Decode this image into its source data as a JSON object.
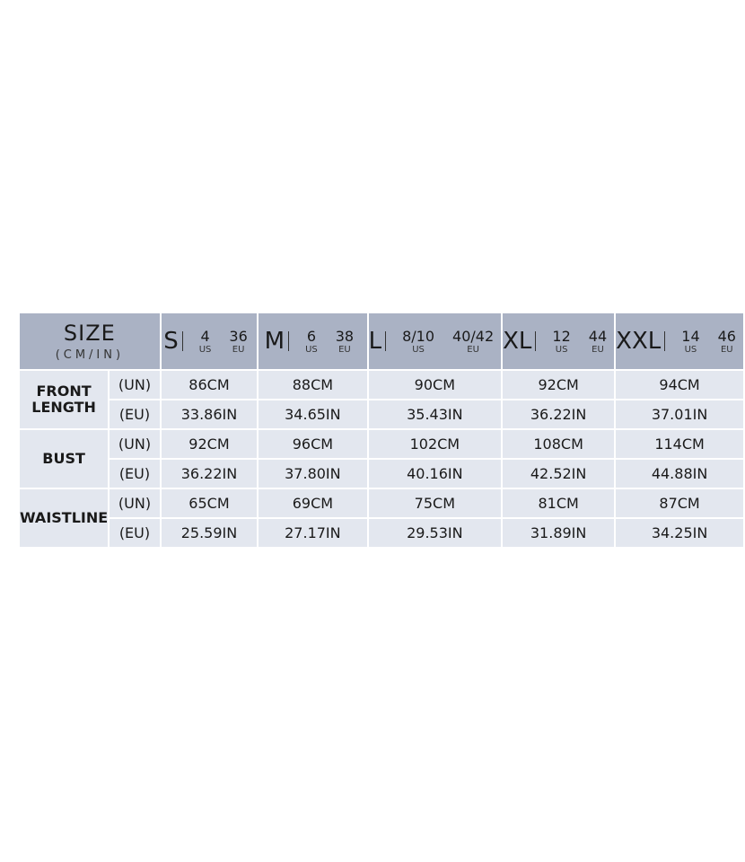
{
  "header": {
    "title": "SIZE",
    "subtitle": "(CM/IN)",
    "sizes": [
      {
        "label": "S",
        "us": "4",
        "eu": "36",
        "us_label": "US",
        "eu_label": "EU"
      },
      {
        "label": "M",
        "us": "6",
        "eu": "38",
        "us_label": "US",
        "eu_label": "EU"
      },
      {
        "label": "L",
        "us": "8/10",
        "eu": "40/42",
        "us_label": "US",
        "eu_label": "EU"
      },
      {
        "label": "XL",
        "us": "12",
        "eu": "44",
        "us_label": "US",
        "eu_label": "EU"
      },
      {
        "label": "XXL",
        "us": "14",
        "eu": "46",
        "us_label": "US",
        "eu_label": "EU"
      }
    ]
  },
  "rows": [
    {
      "measure": "FRONT\nLENGTH",
      "un_label": "(UN)",
      "eu_label": "(EU)",
      "cm": [
        "86CM",
        "88CM",
        "90CM",
        "92CM",
        "94CM"
      ],
      "in": [
        "33.86IN",
        "34.65IN",
        "35.43IN",
        "36.22IN",
        "37.01IN"
      ]
    },
    {
      "measure": "BUST",
      "un_label": "(UN)",
      "eu_label": "(EU)",
      "cm": [
        "92CM",
        "96CM",
        "102CM",
        "108CM",
        "114CM"
      ],
      "in": [
        "36.22IN",
        "37.80IN",
        "40.16IN",
        "42.52IN",
        "44.88IN"
      ]
    },
    {
      "measure": "WAISTLINE",
      "un_label": "(UN)",
      "eu_label": "(EU)",
      "cm": [
        "65CM",
        "69CM",
        "75CM",
        "81CM",
        "87CM"
      ],
      "in": [
        "25.59IN",
        "27.17IN",
        "29.53IN",
        "31.89IN",
        "34.25IN"
      ]
    }
  ],
  "colors": {
    "header_bg": "#aab2c4",
    "body_bg": "#e3e7ef",
    "separator": "#2b3a5a"
  }
}
